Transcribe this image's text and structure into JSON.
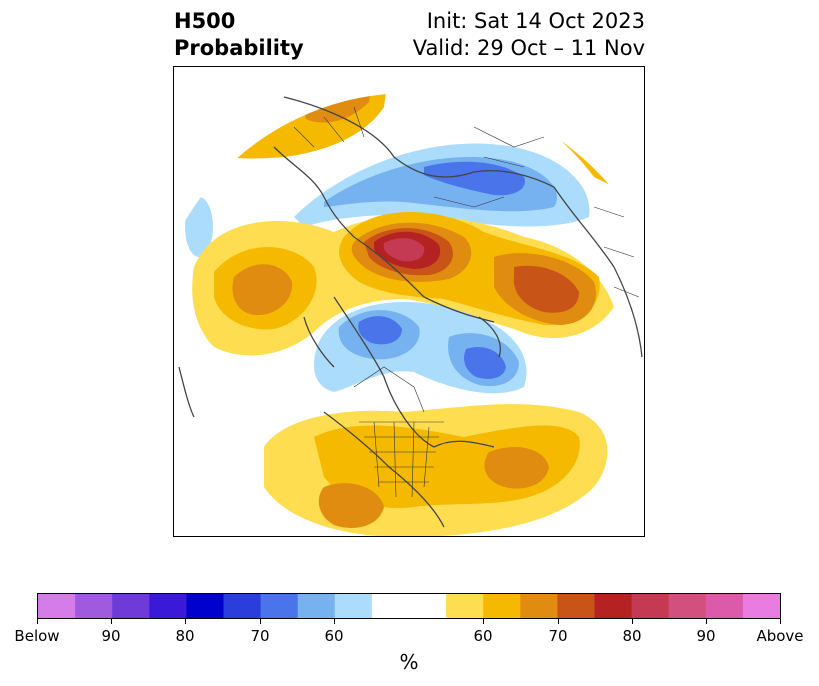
{
  "title": {
    "left_line1": "H500",
    "left_line2": "Probability",
    "right_line1": "Init: Sat 14 Oct 2023",
    "right_line2": "Valid: 29 Oct – 11 Nov"
  },
  "colorbar": {
    "unit": "%",
    "tick_labels": [
      "Below",
      "90",
      "80",
      "70",
      "60",
      "60",
      "70",
      "80",
      "90",
      "Above"
    ],
    "colors": [
      "#d67ce8",
      "#a05ae0",
      "#6e3ad8",
      "#3a1ad8",
      "#0000cd",
      "#2a3edc",
      "#4a74ea",
      "#76b2f0",
      "#acdcfc",
      "#ffffff",
      "#fede50",
      "#f5ba00",
      "#e08c10",
      "#c85418",
      "#b42222",
      "#c43a52",
      "#d2507e",
      "#dc5aaa",
      "#e87ce0"
    ]
  },
  "map": {
    "projection": "north-polar-stereographic",
    "anomaly_colors": {
      "above_low": "#fede50",
      "above_mid": "#f5ba00",
      "above_high": "#e08c10",
      "above_higher": "#c85418",
      "above_top": "#b42222",
      "above_max": "#c43a52",
      "below_low": "#acdcfc",
      "below_mid": "#76b2f0",
      "below_high": "#4a74ea"
    }
  }
}
